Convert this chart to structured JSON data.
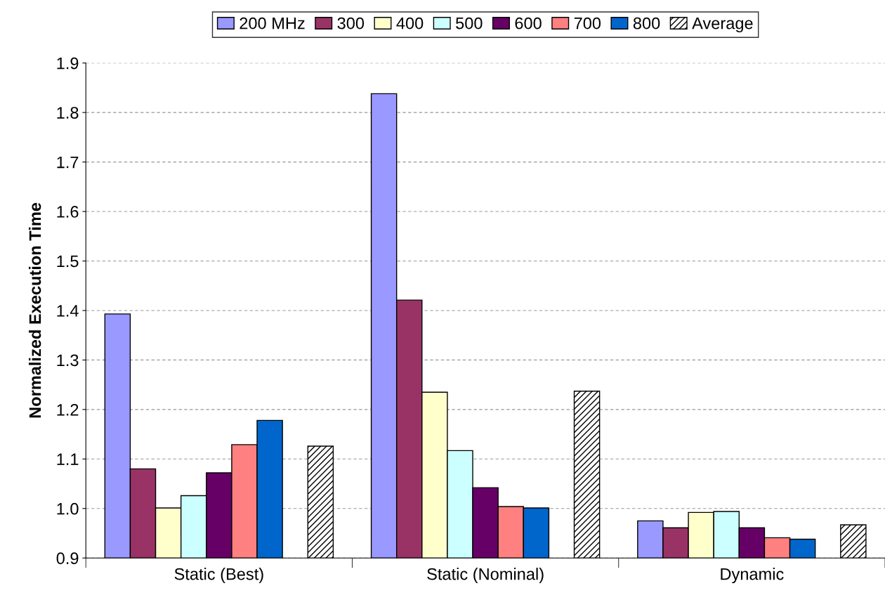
{
  "chart_data": {
    "type": "bar",
    "ylabel": "Normalized Execution Time",
    "categories": [
      "Static (Best)",
      "Static (Nominal)",
      "Dynamic"
    ],
    "series": [
      {
        "name": "200 MHz",
        "color": "#9999ff",
        "values": [
          1.393,
          1.838,
          0.975
        ]
      },
      {
        "name": "300",
        "color": "#993366",
        "values": [
          1.08,
          1.421,
          0.961
        ]
      },
      {
        "name": "400",
        "color": "#ffffcc",
        "values": [
          1.001,
          1.235,
          0.992
        ]
      },
      {
        "name": "500",
        "color": "#ccffff",
        "values": [
          1.026,
          1.117,
          0.994
        ]
      },
      {
        "name": "600",
        "color": "#660066",
        "values": [
          1.072,
          1.042,
          0.961
        ]
      },
      {
        "name": "700",
        "color": "#ff8080",
        "values": [
          1.129,
          1.004,
          0.941
        ]
      },
      {
        "name": "800",
        "color": "#0066cc",
        "values": [
          1.178,
          1.001,
          0.938
        ]
      },
      {
        "name": "Average",
        "color": "#000000",
        "values": [
          1.126,
          1.237,
          0.967
        ]
      }
    ],
    "ylim": [
      0.9,
      1.9
    ],
    "yticks": [
      0.9,
      {
        "value": 1.0,
        "label": "1.0"
      },
      1.1,
      1.2,
      1.3,
      1.4,
      1.5,
      1.6,
      1.7,
      1.8,
      1.9
    ],
    "grid": "y",
    "legend": "top"
  }
}
